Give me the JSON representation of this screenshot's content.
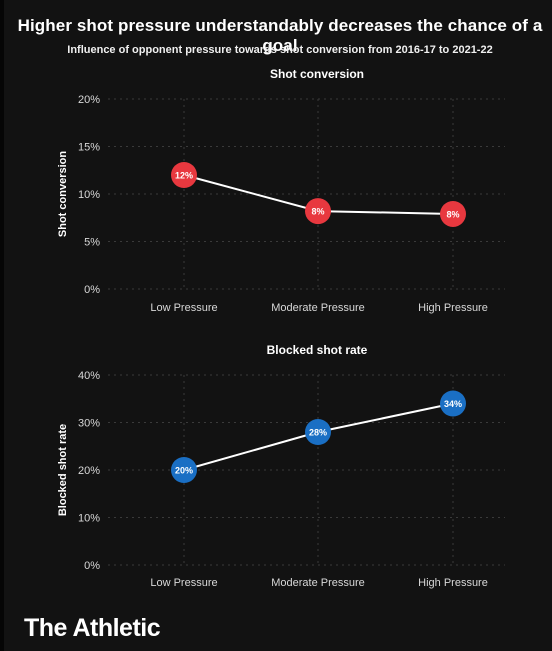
{
  "header": {
    "title": "Higher shot pressure understandably decreases the chance of a goal",
    "subtitle": "Influence of opponent pressure towards shot conversion from 2016-17 to 2021-22"
  },
  "chart_data": [
    {
      "type": "line",
      "title": "Shot conversion",
      "ylabel": "Shot conversion",
      "xlabel": "",
      "categories": [
        "Low Pressure",
        "Moderate Pressure",
        "High Pressure"
      ],
      "values": [
        12,
        8.2,
        7.9
      ],
      "data_labels": [
        "12%",
        "8%",
        "8%"
      ],
      "yticks": [
        "0%",
        "5%",
        "10%",
        "15%",
        "20%"
      ],
      "ylim": [
        0,
        20
      ],
      "grid": true,
      "marker_color": "#e8383f"
    },
    {
      "type": "line",
      "title": "Blocked shot rate",
      "ylabel": "Blocked shot rate",
      "xlabel": "",
      "categories": [
        "Low Pressure",
        "Moderate Pressure",
        "High Pressure"
      ],
      "values": [
        20,
        28,
        34
      ],
      "data_labels": [
        "20%",
        "28%",
        "34%"
      ],
      "yticks": [
        "0%",
        "10%",
        "20%",
        "30%",
        "40%"
      ],
      "ylim": [
        0,
        40
      ],
      "grid": true,
      "marker_color": "#1a6fc4"
    }
  ],
  "footer": {
    "logo": "The Athletic"
  },
  "colors": {
    "background": "#121212",
    "text": "#ffffff",
    "line": "#ffffff"
  }
}
